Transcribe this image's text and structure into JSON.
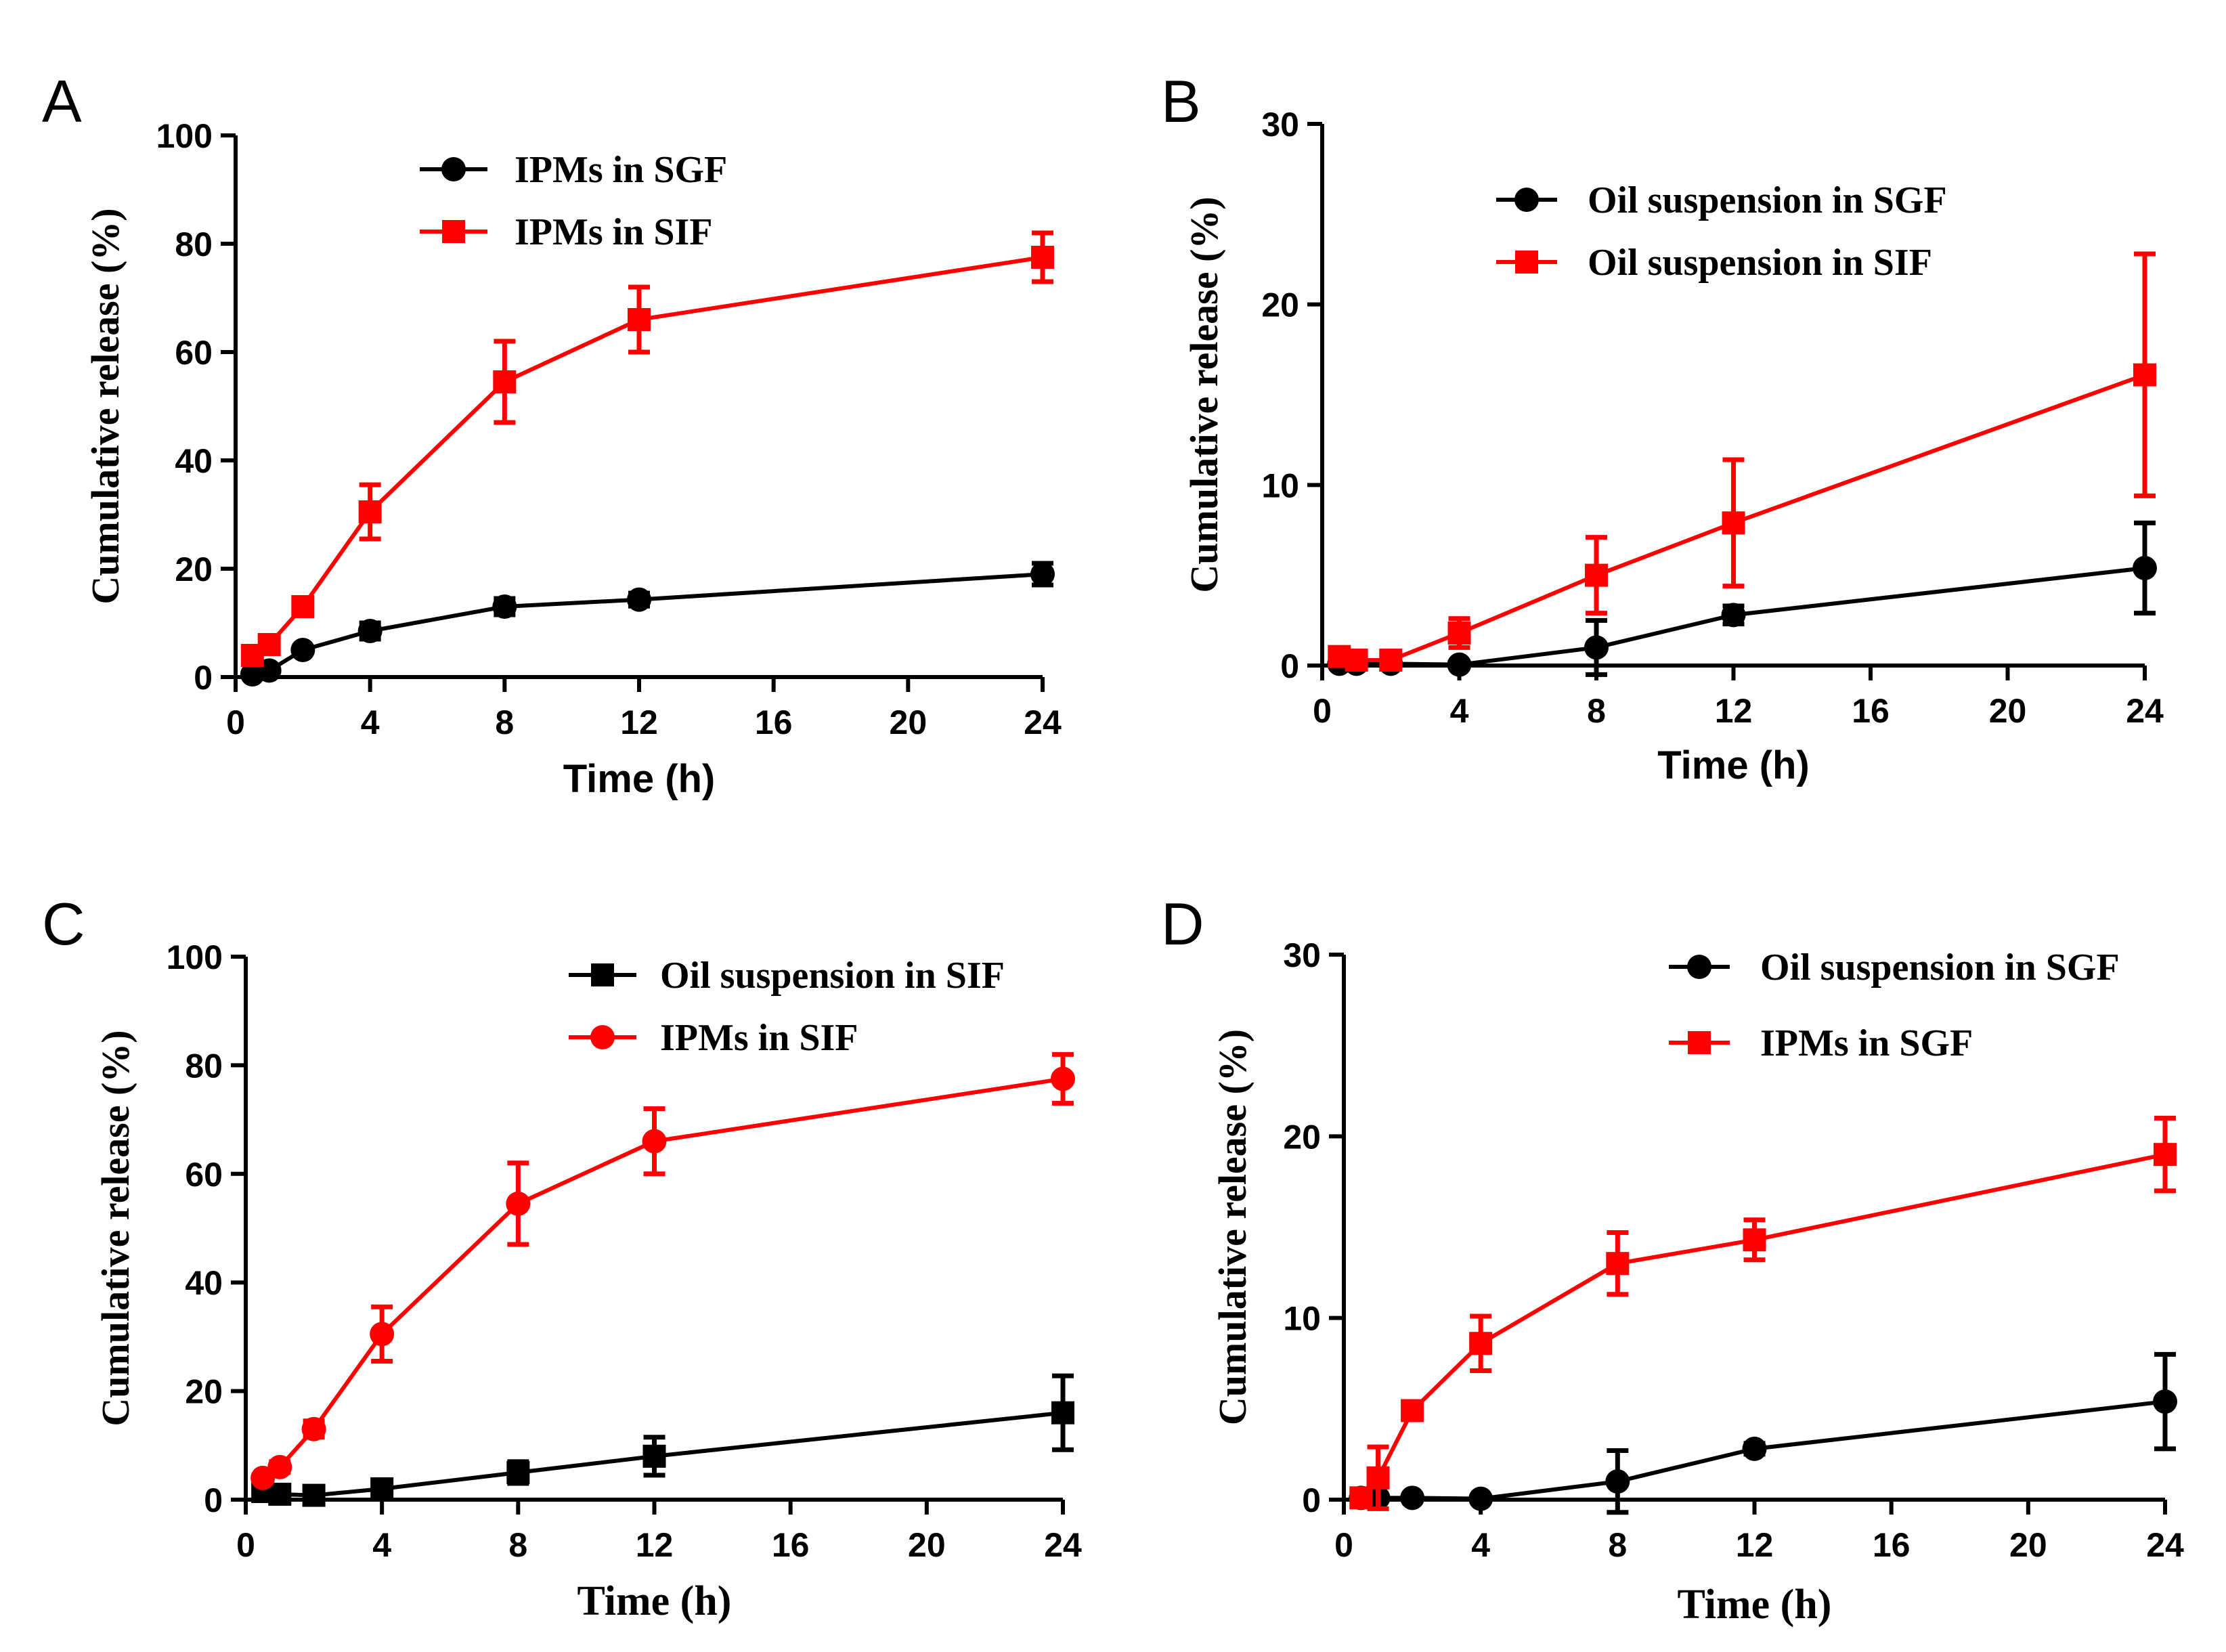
{
  "chart_data": [
    {
      "panel": "A",
      "type": "line",
      "title": "",
      "xlabel": "Time (h)",
      "ylabel": "Cumulative release (%)",
      "xlim": [
        0,
        24
      ],
      "ylim": [
        0,
        100
      ],
      "xticks": [
        0,
        4,
        8,
        12,
        16,
        20,
        24
      ],
      "yticks": [
        0,
        20,
        40,
        60,
        80,
        100
      ],
      "legend_position": "top-center",
      "series": [
        {
          "name": "IPMs in SGF",
          "color": "#000000",
          "marker": "circle",
          "x": [
            0.5,
            1,
            2,
            4,
            8,
            12,
            24
          ],
          "y": [
            0.5,
            1.2,
            5,
            8.5,
            13,
            14.3,
            19
          ],
          "err": [
            0.3,
            0.5,
            0.4,
            1.5,
            1.5,
            1.2,
            2
          ]
        },
        {
          "name": "IPMs in SIF",
          "color": "#ff0000",
          "marker": "square",
          "x": [
            0.5,
            1,
            2,
            4,
            8,
            12,
            24
          ],
          "y": [
            4,
            6,
            13,
            30.5,
            54.5,
            66,
            77.5
          ],
          "err": [
            0.5,
            1,
            1.5,
            5,
            7.5,
            6,
            4.5
          ]
        }
      ]
    },
    {
      "panel": "B",
      "type": "line",
      "title": "",
      "xlabel": "Time (h)",
      "ylabel": "Cumulative release (%)",
      "xlim": [
        0,
        24
      ],
      "ylim": [
        0,
        30
      ],
      "xticks": [
        0,
        4,
        8,
        12,
        16,
        20,
        24
      ],
      "yticks": [
        0,
        10,
        20,
        30
      ],
      "legend_position": "top-center",
      "series": [
        {
          "name": "Oil suspension in SGF",
          "color": "#000000",
          "marker": "circle",
          "x": [
            0.5,
            1,
            2,
            4,
            8,
            12,
            24
          ],
          "y": [
            0.1,
            0.1,
            0.1,
            0.05,
            1,
            2.8,
            5.4
          ],
          "err": [
            0,
            0,
            0,
            0,
            1.5,
            0.5,
            2.5
          ]
        },
        {
          "name": "Oil suspension in SIF",
          "color": "#ff0000",
          "marker": "square",
          "x": [
            0.5,
            1,
            2,
            4,
            8,
            12,
            24
          ],
          "y": [
            0.5,
            0.3,
            0.3,
            1.8,
            5,
            7.9,
            16.1
          ],
          "err": [
            0.2,
            0.2,
            0.2,
            0.8,
            2.1,
            3.5,
            6.7
          ]
        }
      ]
    },
    {
      "panel": "C",
      "type": "line",
      "title": "",
      "xlabel": "Time (h)",
      "ylabel": "Cumulative release (%)",
      "xlim": [
        0,
        24
      ],
      "ylim": [
        0,
        100
      ],
      "xticks": [
        0,
        4,
        8,
        12,
        16,
        20,
        24
      ],
      "yticks": [
        0,
        20,
        40,
        60,
        80,
        100
      ],
      "legend_position": "top-right",
      "series": [
        {
          "name": "Oil suspension in SIF",
          "color": "#000000",
          "marker": "square",
          "x": [
            0.5,
            1,
            2,
            4,
            8,
            12,
            24
          ],
          "y": [
            1.5,
            1,
            0.8,
            2,
            5,
            8,
            16
          ],
          "err": [
            0.5,
            0.4,
            0.4,
            1,
            2,
            3.5,
            6.8
          ]
        },
        {
          "name": "IPMs in SIF",
          "color": "#ff0000",
          "marker": "circle",
          "x": [
            0.5,
            1,
            2,
            4,
            8,
            12,
            24
          ],
          "y": [
            4,
            6,
            13,
            30.5,
            54.5,
            66,
            77.5
          ],
          "err": [
            0.5,
            1,
            1.5,
            5,
            7.5,
            6,
            4.5
          ]
        }
      ]
    },
    {
      "panel": "D",
      "type": "line",
      "title": "",
      "xlabel": "Time (h)",
      "ylabel": "Cumulative release (%)",
      "xlim": [
        0,
        24
      ],
      "ylim": [
        0,
        30
      ],
      "xticks": [
        0,
        4,
        8,
        12,
        16,
        20,
        24
      ],
      "yticks": [
        0,
        10,
        20,
        30
      ],
      "legend_position": "top-right",
      "series": [
        {
          "name": "Oil suspension in SGF",
          "color": "#000000",
          "marker": "circle",
          "x": [
            0.5,
            1,
            2,
            4,
            8,
            12,
            24
          ],
          "y": [
            0.1,
            0.1,
            0.1,
            0.05,
            1,
            2.8,
            5.4
          ],
          "err": [
            0,
            0,
            0,
            0,
            1.7,
            0.3,
            2.6
          ]
        },
        {
          "name": "IPMs in SGF",
          "color": "#ff0000",
          "marker": "square",
          "x": [
            0.5,
            1,
            2,
            4,
            8,
            12,
            24
          ],
          "y": [
            0.1,
            1.2,
            4.9,
            8.6,
            13,
            14.3,
            19
          ],
          "err": [
            0.2,
            1.7,
            0.4,
            1.5,
            1.7,
            1.1,
            2
          ]
        }
      ]
    }
  ]
}
